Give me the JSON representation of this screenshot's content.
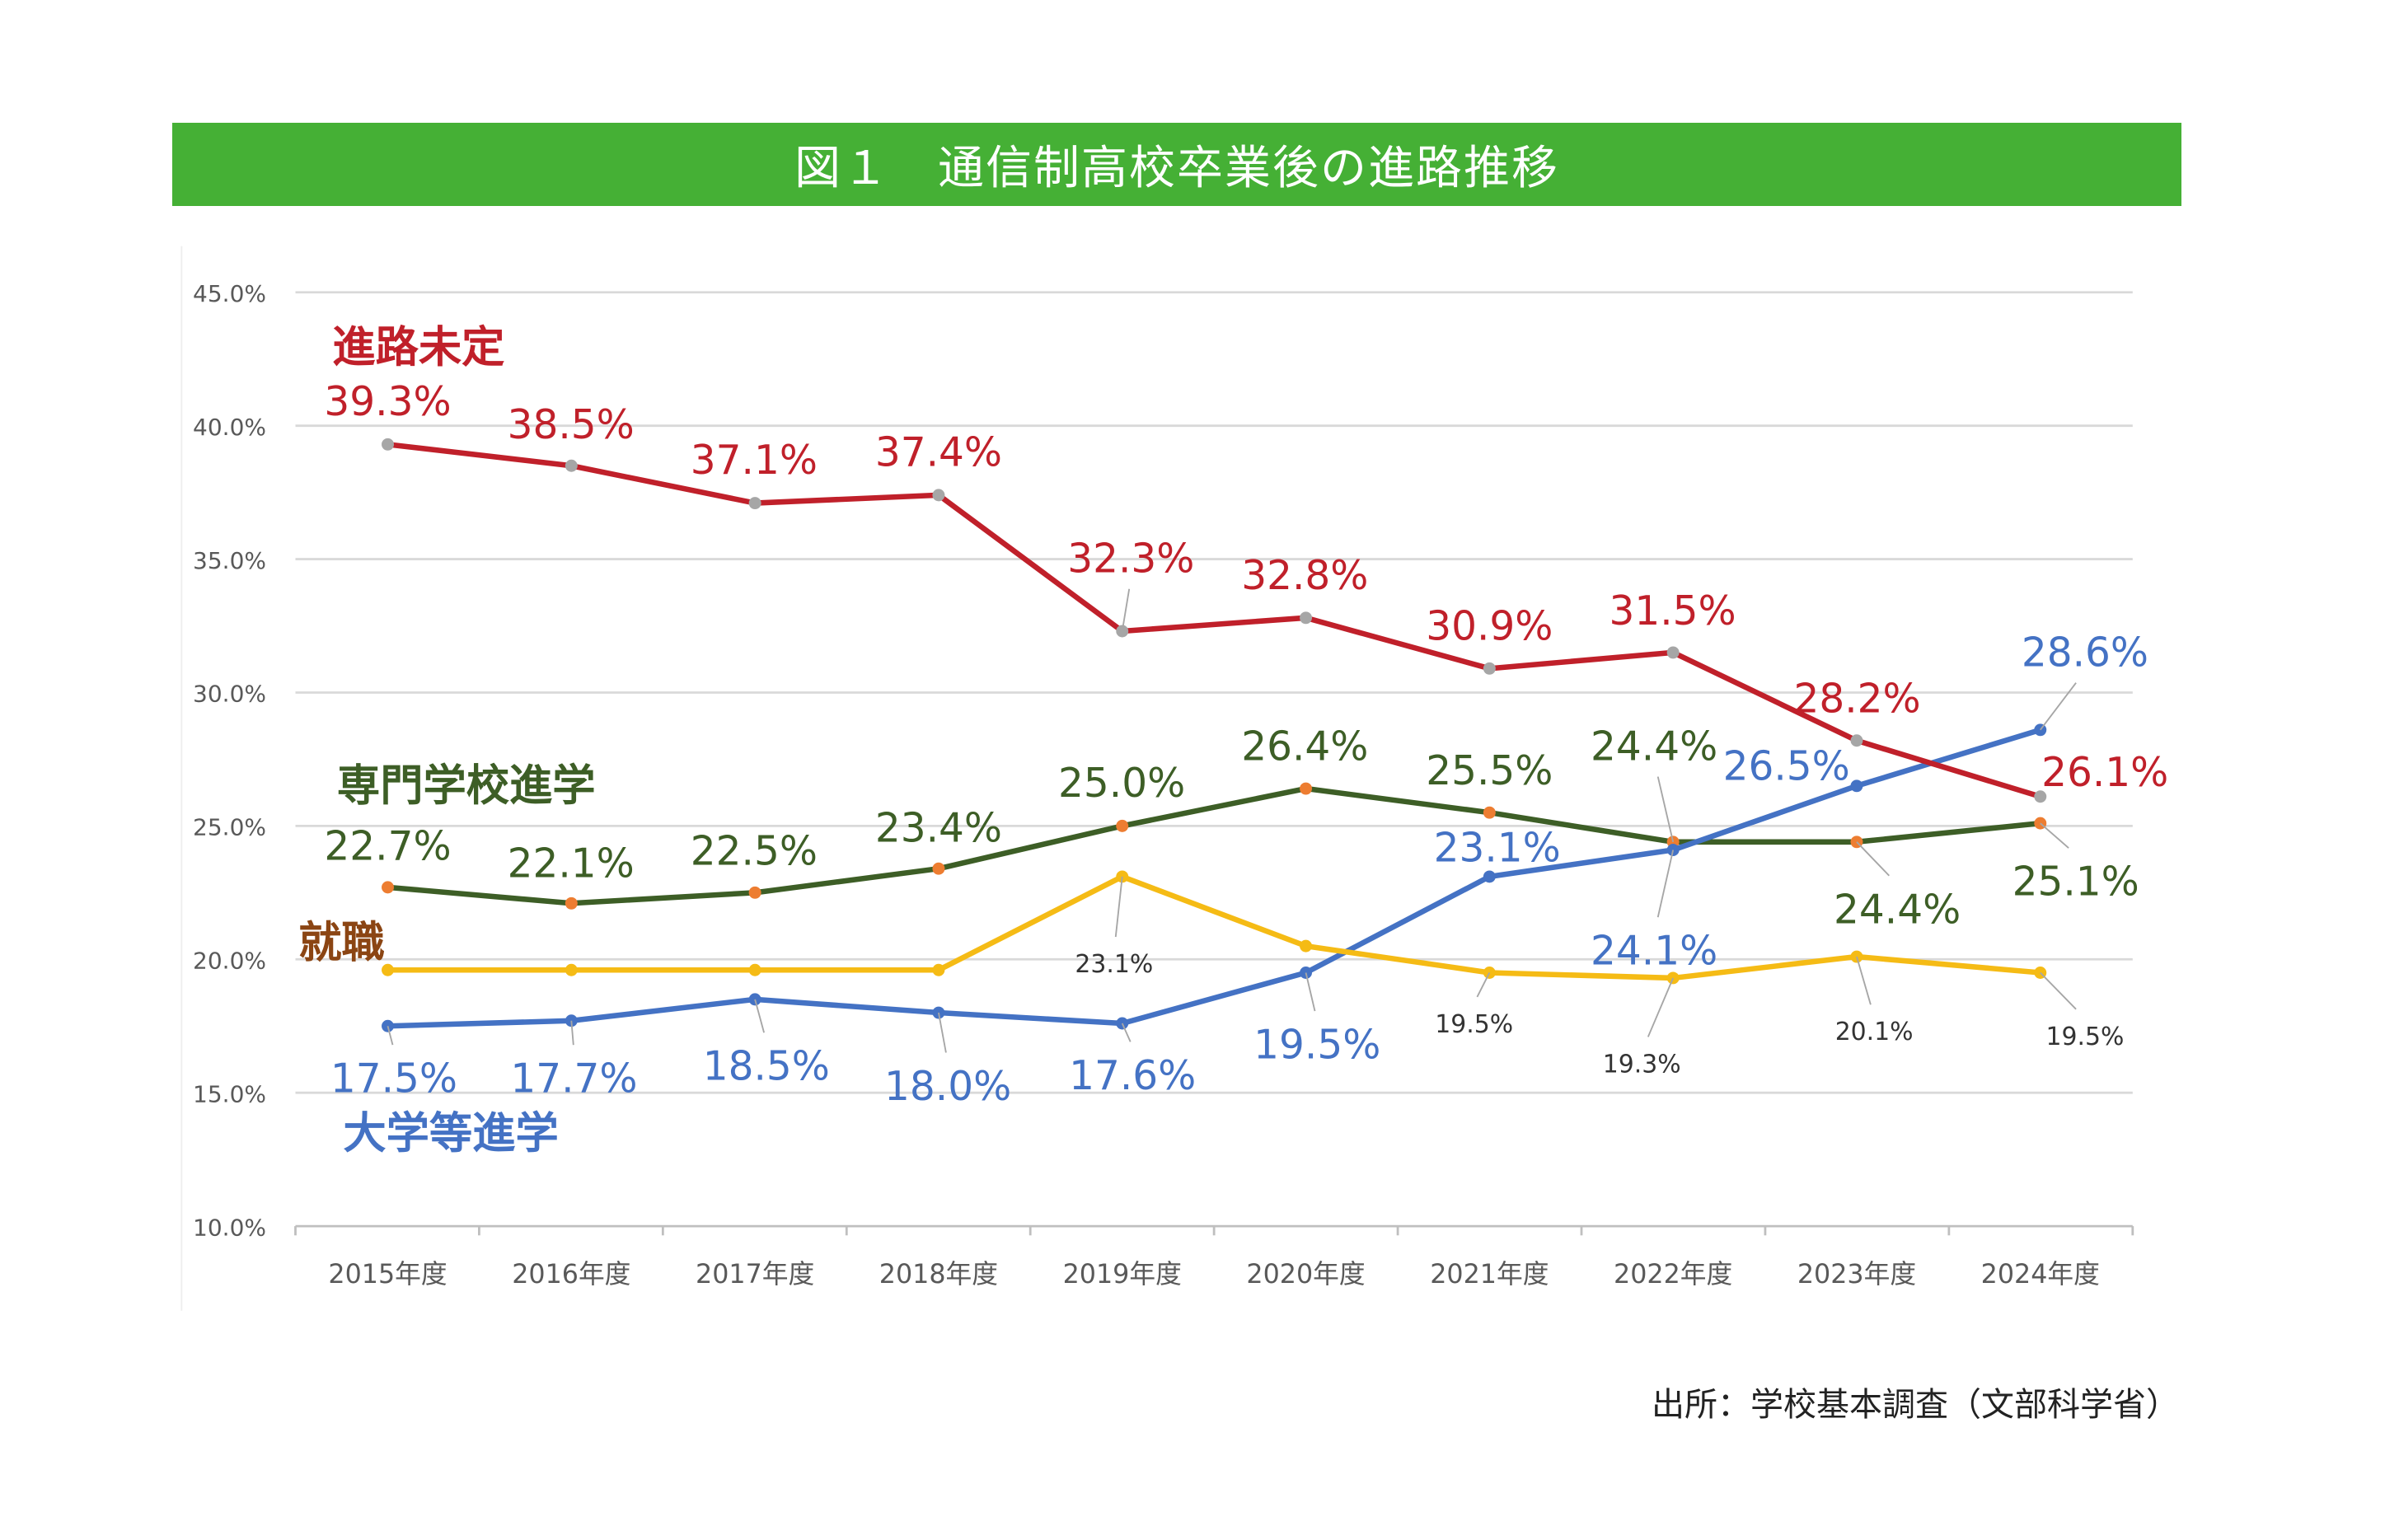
{
  "title": "図１　通信制高校卒業後の進路推移",
  "source": "出所：学校基本調査（文部科学省）",
  "chart_data": {
    "type": "line",
    "title": "図１　通信制高校卒業後の進路推移",
    "categories": [
      "2015年度",
      "2016年度",
      "2017年度",
      "2018年度",
      "2019年度",
      "2020年度",
      "2021年度",
      "2022年度",
      "2023年度",
      "2024年度"
    ],
    "ylim": [
      10,
      45
    ],
    "yticks": [
      "10.0%",
      "15.0%",
      "20.0%",
      "25.0%",
      "30.0%",
      "35.0%",
      "40.0%",
      "45.0%"
    ],
    "grid": true,
    "series": [
      {
        "name": "進路未定",
        "color": "#c0202a",
        "marker_color": "#a6a6a6",
        "label_color": "#c0202a",
        "values": [
          39.3,
          38.5,
          37.1,
          37.4,
          32.3,
          32.8,
          30.9,
          31.5,
          28.2,
          26.1
        ],
        "labeled": [
          true,
          true,
          true,
          true,
          true,
          true,
          true,
          true,
          true,
          true
        ]
      },
      {
        "name": "専門学校進学",
        "color": "#3d5e26",
        "marker_color": "#ed7d31",
        "label_color": "#3d5e26",
        "values": [
          22.7,
          22.1,
          22.5,
          23.4,
          25.0,
          26.4,
          25.5,
          24.4,
          24.4,
          25.1
        ],
        "labeled": [
          true,
          true,
          true,
          true,
          true,
          true,
          true,
          true,
          true,
          true
        ]
      },
      {
        "name": "就職",
        "color": "#f5bb15",
        "marker_color": "#f5bb15",
        "label_color": "#333333",
        "name_color": "#8b4513",
        "values": [
          19.6,
          19.6,
          19.6,
          19.6,
          23.1,
          20.5,
          19.5,
          19.3,
          20.1,
          19.5
        ],
        "labeled": [
          false,
          false,
          false,
          false,
          true,
          false,
          true,
          true,
          true,
          true
        ]
      },
      {
        "name": "大学等進学",
        "color": "#4472c4",
        "marker_color": "#4472c4",
        "label_color": "#4472c4",
        "values": [
          17.5,
          17.7,
          18.5,
          18.0,
          17.6,
          19.5,
          23.1,
          24.1,
          26.5,
          28.6
        ],
        "labeled": [
          true,
          true,
          true,
          true,
          true,
          true,
          true,
          true,
          true,
          true
        ]
      }
    ]
  }
}
